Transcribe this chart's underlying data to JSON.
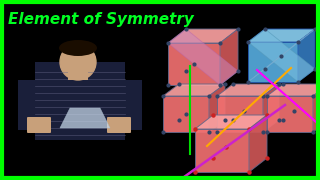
{
  "bg_color": "#000000",
  "border_color": "#00ff00",
  "border_width": 3,
  "title_text": "Element of Symmetry",
  "title_color": "#00ff22",
  "title_fontsize": 11,
  "cube_salmon": "#f07070",
  "cube_salmon_dark": "#cc5555",
  "cube_pink_light": "#f9a0a0",
  "cube_blue": "#55aadd",
  "cube_blue_dark": "#3377bb",
  "cube_blue_light": "#88ccee",
  "dot_dark": "#334466",
  "dot_red": "#cc2222",
  "line_green": "#00dd00",
  "line_orange": "#ffaa00",
  "line_magenta": "#ff00ff",
  "line_purple": "#cc22cc",
  "plane_pink": "#e090b0",
  "plane_pink2": "#cc7799"
}
